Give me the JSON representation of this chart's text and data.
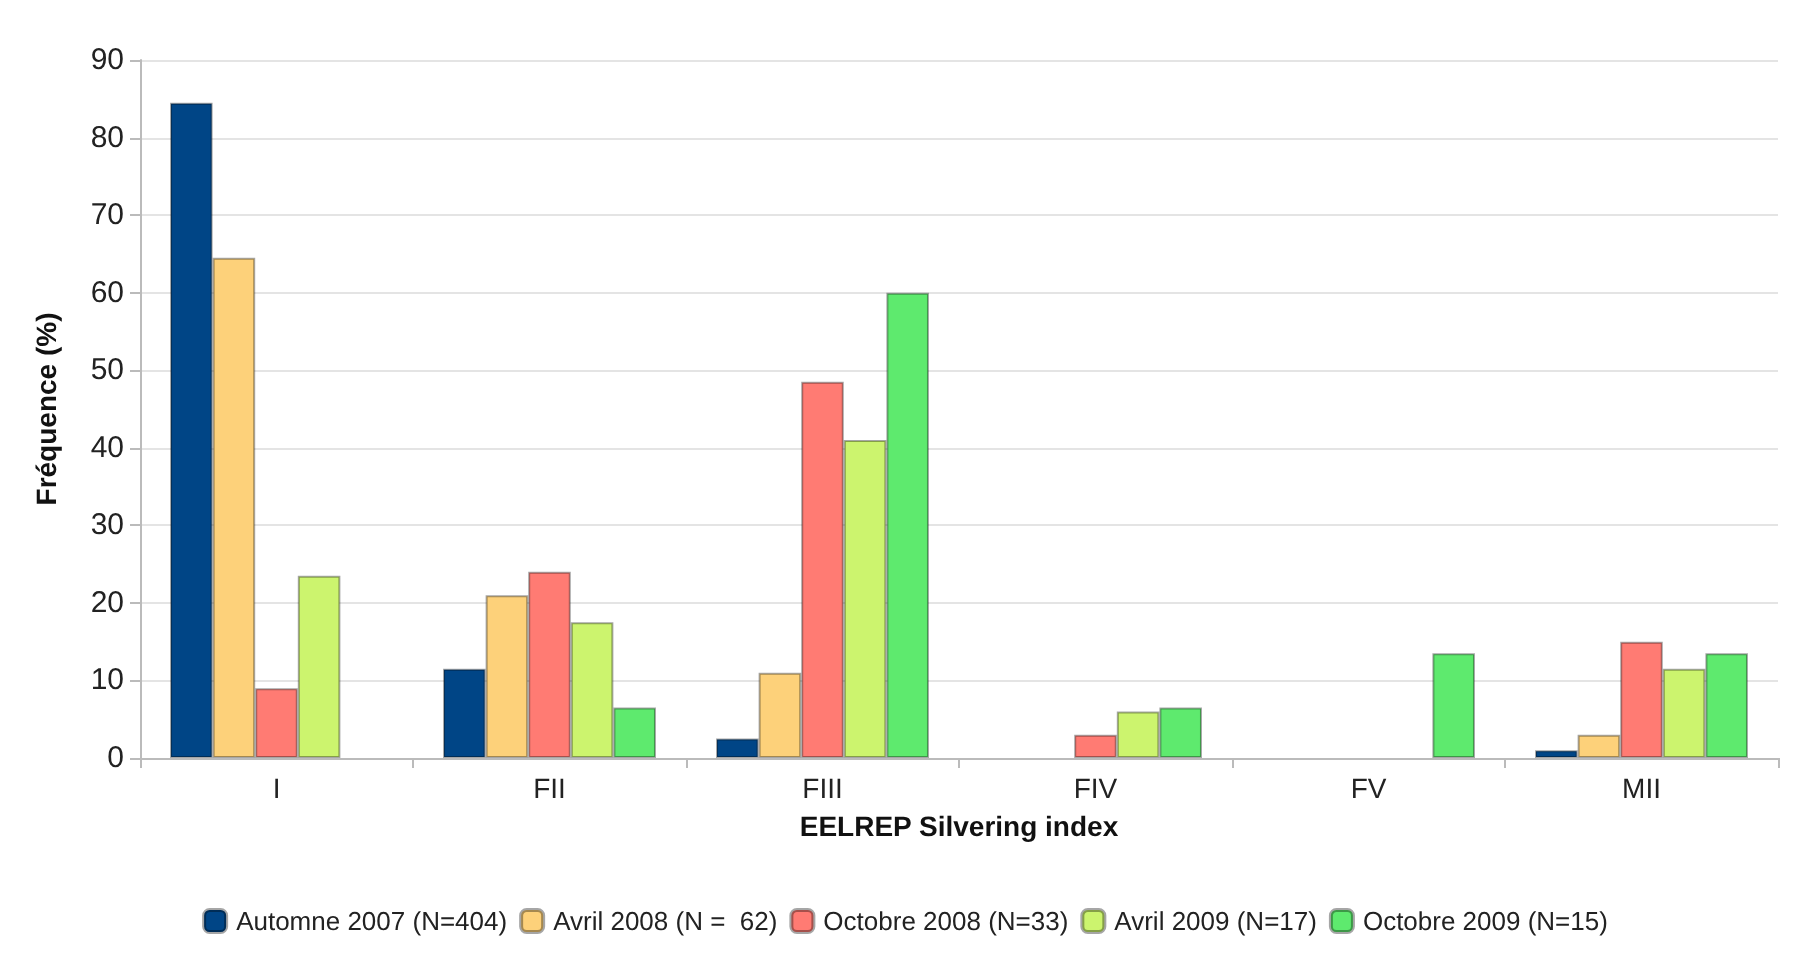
{
  "chart_data": {
    "type": "bar",
    "xlabel": "EELREP Silvering index",
    "ylabel": "Fréquence (%)",
    "categories": [
      "I",
      "FII",
      "FIII",
      "FIV",
      "FV",
      "MII"
    ],
    "series": [
      {
        "name": "Automne 2007 (N=404)",
        "color": "#004586",
        "values": [
          84.5,
          11.5,
          2.5,
          null,
          null,
          1
        ]
      },
      {
        "name": "Avril 2008 (N =  62)",
        "color": "#fdd17a",
        "values": [
          64.5,
          21,
          11,
          null,
          null,
          3
        ]
      },
      {
        "name": "Octobre 2008 (N=33)",
        "color": "#ff7b73",
        "values": [
          9,
          24,
          48.5,
          3,
          null,
          15
        ]
      },
      {
        "name": "Avril 2009 (N=17)",
        "color": "#ccf46e",
        "values": [
          23.5,
          17.5,
          41,
          6,
          null,
          11.5
        ]
      },
      {
        "name": "Octobre 2009 (N=15)",
        "color": "#5eea6e",
        "values": [
          null,
          6.5,
          60,
          6.5,
          13.5,
          13.5
        ]
      }
    ],
    "ylim": [
      0,
      90
    ],
    "yticks": [
      0,
      10,
      20,
      30,
      40,
      50,
      60,
      70,
      80,
      90
    ],
    "grid": "y",
    "legend": "bottom"
  }
}
